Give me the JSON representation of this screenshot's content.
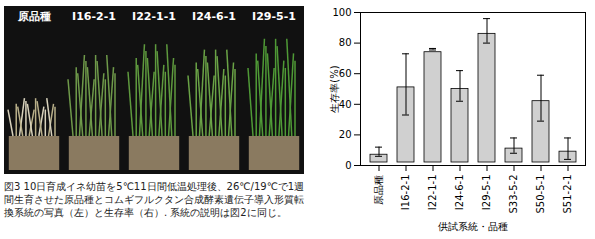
{
  "chart_data": {
    "type": "bar",
    "categories": [
      "原品種",
      "I16-2-1",
      "I22-1-1",
      "I24-6-1",
      "I29-5-1",
      "S33-5-2",
      "S50-5-1",
      "S51-2-1"
    ],
    "values": [
      9,
      53,
      76,
      52,
      88,
      13,
      44,
      11
    ],
    "errors": [
      3,
      20,
      0.5,
      10,
      8,
      5,
      15,
      7
    ],
    "color": "#d0d0d0",
    "xlabel": "供試系統・品種",
    "ylabel": "生存率(%)",
    "ylim": [
      0,
      100
    ],
    "yticks": [
      0,
      20,
      40,
      60,
      80,
      100
    ],
    "grid": false
  },
  "photo": {
    "labels": [
      "原品種",
      "I16-2-1",
      "I22-1-1",
      "I24-6-1",
      "I29-5-1"
    ]
  },
  "caption": "図3 10日育成イネ幼苗を5℃11日間低温処理後、26℃/19℃で1週間生育させた原品種とコムギフルクタン合成酵素遺伝子導入形質転換系統の写真（左）と生存率（右）. 系統の説明は図2に同じ。"
}
